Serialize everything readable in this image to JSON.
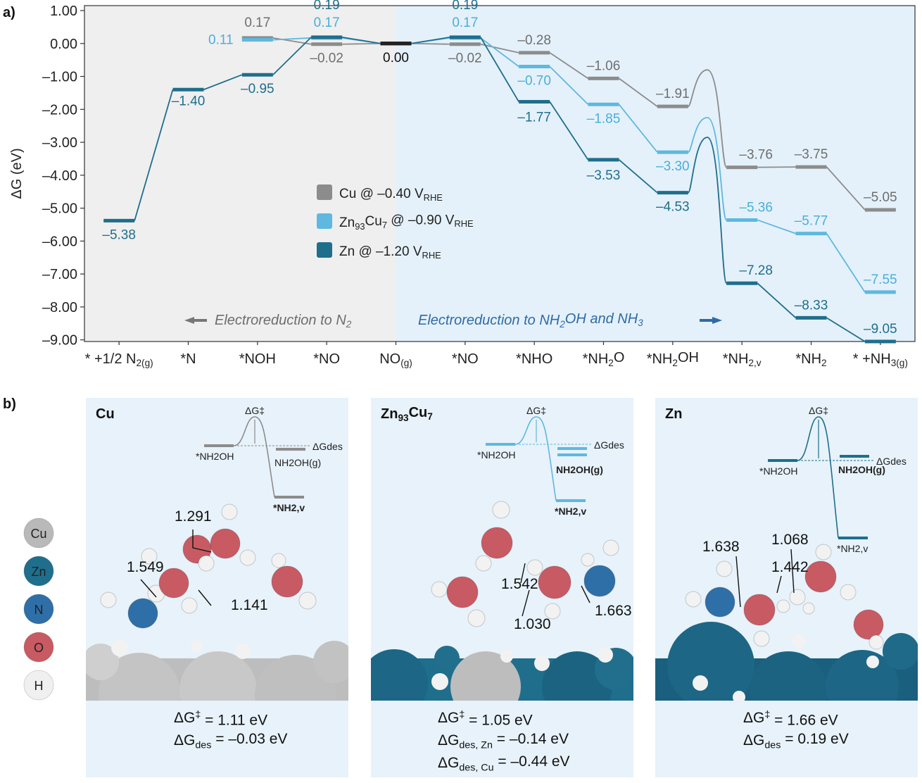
{
  "panels": {
    "a": "a)",
    "b": "b)"
  },
  "chart_data": {
    "type": "line",
    "title": "",
    "ylabel": "ΔG (eV)",
    "xlabel": "",
    "ylim": [
      -9.05,
      1.15
    ],
    "yticks": [
      1.0,
      0.0,
      -1.0,
      -2.0,
      -3.0,
      -4.0,
      -5.0,
      -6.0,
      -7.0,
      -8.0,
      -9.0
    ],
    "ytick_labels": [
      "1.00",
      "0.00",
      "–1.00",
      "–2.00",
      "–3.00",
      "–4.00",
      "–5.00",
      "–6.00",
      "–7.00",
      "–8.00",
      "–9.00"
    ],
    "categories": [
      "* +1/2 N2(g)",
      "*N",
      "*NOH",
      "*NO",
      "NO(g)",
      "*NO",
      "*NHO",
      "*NH2O",
      "*NH2OH",
      "*NH2,v",
      "*NH2",
      "* +NH3(g)"
    ],
    "category_parts": [
      [
        "* +1/2 N",
        "2(g)",
        ""
      ],
      [
        "*N",
        "",
        ""
      ],
      [
        "*NOH",
        "",
        ""
      ],
      [
        "*NO",
        "",
        ""
      ],
      [
        "NO",
        "(g)",
        ""
      ],
      [
        "*NO",
        "",
        ""
      ],
      [
        "*NHO",
        "",
        ""
      ],
      [
        "*NH",
        "2",
        "O"
      ],
      [
        "*NH",
        "2",
        "OH"
      ],
      [
        "*NH",
        "2,v",
        ""
      ],
      [
        "*NH",
        "2",
        ""
      ],
      [
        "* +NH",
        "3(g)",
        ""
      ]
    ],
    "regions": {
      "left": "← Electroreduction to N2",
      "left_parts": [
        "Electroreduction to N",
        "2"
      ],
      "right": "Electroreduction to NH2OH and NH3 →",
      "right_parts": [
        "Electroreduction to NH",
        "2",
        "OH and NH",
        "3"
      ]
    },
    "series": [
      {
        "name": "Cu @ –0.40 VRHE",
        "legend_parts": [
          "Cu @ –0.40 V",
          "RHE"
        ],
        "color": "#8c8c8c",
        "label_color": "#6e6e6e",
        "start_index": 2,
        "values": [
          null,
          null,
          0.17,
          -0.02,
          0.0,
          -0.02,
          -0.28,
          -1.06,
          -1.91,
          -3.76,
          -3.75,
          -5.05
        ],
        "labels": [
          null,
          null,
          "0.17",
          "–0.02",
          "0.00",
          "–0.02",
          "–0.28",
          "–1.06",
          "–1.91",
          "–3.76",
          "–3.75",
          "–5.05"
        ],
        "barrier_peak": -0.8
      },
      {
        "name": "Zn93Cu7 @ –0.90 VRHE",
        "legend_parts": [
          "Zn",
          "93",
          "Cu",
          "7",
          " @ –0.90 V",
          "RHE"
        ],
        "color": "#5fb8e0",
        "label_color": "#4aaedb",
        "start_index": 2,
        "values": [
          null,
          null,
          0.11,
          0.17,
          0.0,
          0.17,
          -0.7,
          -1.85,
          -3.3,
          -5.36,
          -5.77,
          -7.55
        ],
        "labels": [
          null,
          null,
          "0.11",
          "0.17",
          null,
          "0.17",
          "–0.70",
          "–1.85",
          "–3.30",
          "–5.36",
          "–5.77",
          "–7.55"
        ],
        "barrier_peak": -2.25
      },
      {
        "name": "Zn @ –1.20 VRHE",
        "legend_parts": [
          "Zn @ –1.20 V",
          "RHE"
        ],
        "color": "#1f6e8c",
        "label_color": "#1f6e8c",
        "start_index": 0,
        "values": [
          -5.38,
          -1.4,
          -0.95,
          0.19,
          0.0,
          0.19,
          -1.77,
          -3.53,
          -4.53,
          -7.28,
          -8.33,
          -9.05
        ],
        "labels": [
          "–5.38",
          "–1.40",
          "–0.95",
          "0.19",
          null,
          "0.19",
          "–1.77",
          "–3.53",
          "–4.53",
          "–7.28",
          "–8.33",
          "–9.05"
        ],
        "barrier_peak": -2.85
      }
    ]
  },
  "panel_b": {
    "boxes": [
      {
        "title": "Cu",
        "title_parts": [
          "Cu"
        ],
        "color": "#8c8c8c",
        "bond_lengths": [
          "1.291",
          "1.549",
          "1.141"
        ],
        "mini": {
          "dg_ts": "ΔG‡",
          "dg_des": "ΔGdes",
          "left": "*NH2OH",
          "gas": "NH2OH(g)",
          "final": "*NH2,v"
        },
        "equations": [
          [
            "ΔG",
            "‡",
            " = 1.11 eV"
          ],
          [
            "ΔG",
            "des",
            " = –0.03 eV"
          ]
        ]
      },
      {
        "title": "Zn93Cu7",
        "title_parts": [
          "Zn",
          "93",
          "Cu",
          "7"
        ],
        "color": "#5fb8e0",
        "bond_lengths": [
          "1.542",
          "1.030",
          "1.663"
        ],
        "mini": {
          "dg_ts": "ΔG‡",
          "dg_des": "ΔGdes",
          "left": "*NH2OH",
          "gas": "NH2OH(g)",
          "final": "*NH2,v"
        },
        "equations": [
          [
            "ΔG",
            "‡",
            " = 1.05 eV"
          ],
          [
            "ΔG",
            "des, Zn",
            " = –0.14 eV"
          ],
          [
            "ΔG",
            "des, Cu",
            " = –0.44 eV"
          ]
        ]
      },
      {
        "title": "Zn",
        "title_parts": [
          "Zn"
        ],
        "color": "#1f6e8c",
        "bond_lengths": [
          "1.638",
          "1.068",
          "1.442"
        ],
        "mini": {
          "dg_ts": "ΔG‡",
          "dg_des": "ΔGdes",
          "left": "*NH2OH",
          "gas": "NH2OH(g)",
          "final": "*NH2,v"
        },
        "equations": [
          [
            "ΔG",
            "‡",
            " = 1.66 eV"
          ],
          [
            "ΔG",
            "des",
            " = 0.19 eV"
          ]
        ]
      }
    ],
    "atom_key": [
      {
        "label": "Cu",
        "color": "#b9b9b9",
        "text_color": "#333333"
      },
      {
        "label": "Zn",
        "color": "#1f6e8c",
        "text_color": "#ffffff"
      },
      {
        "label": "N",
        "color": "#2f6fa8",
        "text_color": "#ffffff"
      },
      {
        "label": "O",
        "color": "#c85a63",
        "text_color": "#ffffff"
      },
      {
        "label": "H",
        "color": "#f0f0f0",
        "text_color": "#333333"
      }
    ]
  }
}
